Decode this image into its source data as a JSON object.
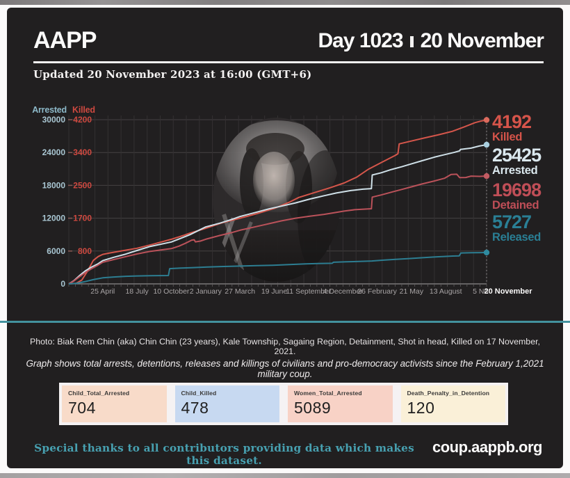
{
  "header": {
    "logo": "AAPP",
    "day_label": "Day 1023",
    "date_label": "20 November",
    "updated": "Updated 20 November 2023 at 16:00 (GMT+6)"
  },
  "colors": {
    "card_bg": "#211f20",
    "divider": "#43929e",
    "thanks": "#47a0b0",
    "grid_vertical": "#343132",
    "grid_horizontal": "#454243"
  },
  "chart_data": {
    "type": "line",
    "title": "",
    "x_axis": {
      "start_label_date": "February 1, 2021",
      "end_day": 1023,
      "tick_days": [
        83,
        167,
        251,
        335,
        419,
        503,
        587,
        671,
        755,
        839,
        923,
        1008,
        1023
      ],
      "tick_labels": [
        "25 April",
        "18 July",
        "10 October",
        "2 January",
        "27 March",
        "19 June",
        "11 September",
        "4 December",
        "26 February",
        "21 May",
        "13 August",
        "5 No",
        "20 November"
      ]
    },
    "y_left": {
      "label": "Arrested",
      "color": "#8db9c9",
      "ticks": [
        0,
        6000,
        12000,
        18000,
        24000,
        30000
      ],
      "max": 30000
    },
    "y_killed": {
      "label": "Killed",
      "color": "#ce4940",
      "ticks": [
        800,
        1700,
        2500,
        3400,
        4200
      ],
      "max": 4200
    },
    "series": [
      {
        "name": "Killed",
        "axis": "killed",
        "color": "#d5564b",
        "dot": "#dd6a5d",
        "final_value": 4192,
        "points": [
          [
            0,
            0
          ],
          [
            18,
            15
          ],
          [
            32,
            100
          ],
          [
            46,
            330
          ],
          [
            60,
            600
          ],
          [
            72,
            700
          ],
          [
            83,
            755
          ],
          [
            100,
            790
          ],
          [
            130,
            846
          ],
          [
            167,
            912
          ],
          [
            205,
            1010
          ],
          [
            251,
            1140
          ],
          [
            283,
            1245
          ],
          [
            297,
            1300
          ],
          [
            335,
            1420
          ],
          [
            375,
            1560
          ],
          [
            419,
            1680
          ],
          [
            455,
            1780
          ],
          [
            503,
            1930
          ],
          [
            540,
            2090
          ],
          [
            563,
            2210
          ],
          [
            600,
            2330
          ],
          [
            640,
            2460
          ],
          [
            674,
            2580
          ],
          [
            705,
            2730
          ],
          [
            734,
            2935
          ],
          [
            768,
            3120
          ],
          [
            800,
            3290
          ],
          [
            806,
            3330
          ],
          [
            809,
            3580
          ],
          [
            835,
            3645
          ],
          [
            870,
            3730
          ],
          [
            904,
            3810
          ],
          [
            940,
            3905
          ],
          [
            968,
            4015
          ],
          [
            995,
            4125
          ],
          [
            1008,
            4160
          ],
          [
            1023,
            4192
          ]
        ]
      },
      {
        "name": "Arrested",
        "axis": "arrested",
        "color": "#cfe0e8",
        "dot": "#a9cfdf",
        "final_value": 25425,
        "points": [
          [
            0,
            0
          ],
          [
            12,
            560
          ],
          [
            26,
            1500
          ],
          [
            40,
            2350
          ],
          [
            55,
            3050
          ],
          [
            70,
            3600
          ],
          [
            83,
            4250
          ],
          [
            110,
            4850
          ],
          [
            140,
            5450
          ],
          [
            167,
            6100
          ],
          [
            200,
            6850
          ],
          [
            251,
            7650
          ],
          [
            275,
            8350
          ],
          [
            297,
            9000
          ],
          [
            335,
            10400
          ],
          [
            370,
            11100
          ],
          [
            400,
            11800
          ],
          [
            419,
            12300
          ],
          [
            455,
            13000
          ],
          [
            490,
            13700
          ],
          [
            520,
            14200
          ],
          [
            555,
            14800
          ],
          [
            590,
            15500
          ],
          [
            625,
            16100
          ],
          [
            655,
            16600
          ],
          [
            690,
            17050
          ],
          [
            720,
            17300
          ],
          [
            741,
            17400
          ],
          [
            743,
            19900
          ],
          [
            765,
            20300
          ],
          [
            790,
            20900
          ],
          [
            815,
            21400
          ],
          [
            840,
            21950
          ],
          [
            865,
            22500
          ],
          [
            895,
            23150
          ],
          [
            920,
            23600
          ],
          [
            945,
            24050
          ],
          [
            957,
            24300
          ],
          [
            959,
            24560
          ],
          [
            985,
            24800
          ],
          [
            1005,
            25180
          ],
          [
            1023,
            25425
          ]
        ]
      },
      {
        "name": "Detained",
        "axis": "arrested",
        "color": "#bb525a",
        "dot": "#c25b62",
        "final_value": 19698,
        "points": [
          [
            0,
            0
          ],
          [
            12,
            500
          ],
          [
            26,
            1300
          ],
          [
            40,
            2050
          ],
          [
            55,
            2750
          ],
          [
            70,
            3350
          ],
          [
            83,
            3950
          ],
          [
            110,
            4450
          ],
          [
            140,
            4980
          ],
          [
            167,
            5470
          ],
          [
            200,
            5950
          ],
          [
            251,
            6440
          ],
          [
            270,
            6900
          ],
          [
            285,
            7400
          ],
          [
            301,
            8000
          ],
          [
            307,
            8060
          ],
          [
            310,
            7680
          ],
          [
            322,
            7820
          ],
          [
            335,
            8150
          ],
          [
            370,
            8850
          ],
          [
            400,
            9400
          ],
          [
            419,
            9800
          ],
          [
            455,
            10400
          ],
          [
            490,
            11000
          ],
          [
            520,
            11500
          ],
          [
            555,
            12000
          ],
          [
            590,
            12350
          ],
          [
            625,
            12700
          ],
          [
            655,
            13050
          ],
          [
            674,
            13300
          ],
          [
            700,
            13550
          ],
          [
            741,
            13730
          ],
          [
            743,
            15850
          ],
          [
            765,
            16250
          ],
          [
            790,
            16750
          ],
          [
            815,
            17250
          ],
          [
            840,
            17750
          ],
          [
            865,
            18250
          ],
          [
            895,
            18800
          ],
          [
            920,
            19300
          ],
          [
            936,
            19980
          ],
          [
            950,
            20030
          ],
          [
            957,
            19420
          ],
          [
            972,
            19440
          ],
          [
            985,
            19690
          ],
          [
            1006,
            19640
          ],
          [
            1023,
            19698
          ]
        ]
      },
      {
        "name": "Released",
        "axis": "arrested",
        "color": "#2d7e92",
        "dot": "#2f8ba0",
        "final_value": 5727,
        "points": [
          [
            0,
            0
          ],
          [
            20,
            120
          ],
          [
            40,
            420
          ],
          [
            60,
            780
          ],
          [
            83,
            1100
          ],
          [
            110,
            1260
          ],
          [
            140,
            1380
          ],
          [
            167,
            1445
          ],
          [
            200,
            1500
          ],
          [
            244,
            1520
          ],
          [
            247,
            2780
          ],
          [
            270,
            2870
          ],
          [
            300,
            2950
          ],
          [
            340,
            3080
          ],
          [
            380,
            3180
          ],
          [
            420,
            3250
          ],
          [
            460,
            3330
          ],
          [
            500,
            3410
          ],
          [
            540,
            3520
          ],
          [
            580,
            3650
          ],
          [
            610,
            3720
          ],
          [
            645,
            3760
          ],
          [
            648,
            3950
          ],
          [
            680,
            4030
          ],
          [
            710,
            4100
          ],
          [
            742,
            4180
          ],
          [
            770,
            4330
          ],
          [
            800,
            4480
          ],
          [
            830,
            4620
          ],
          [
            860,
            4760
          ],
          [
            890,
            4900
          ],
          [
            915,
            5000
          ],
          [
            940,
            5080
          ],
          [
            956,
            5120
          ],
          [
            960,
            5650
          ],
          [
            985,
            5690
          ],
          [
            1008,
            5710
          ],
          [
            1023,
            5727
          ]
        ]
      }
    ],
    "end_labels": [
      {
        "value": "4192",
        "name": "Killed",
        "color": "#d6544a"
      },
      {
        "value": "25425",
        "name": "Arrested",
        "color": "#dbe8ee"
      },
      {
        "value": "19698",
        "name": "Detained",
        "color": "#bf4e57"
      },
      {
        "value": "5727",
        "name": "Released",
        "color": "#2a7f95"
      }
    ],
    "legend_position": "right",
    "grid": true
  },
  "notes": {
    "photo_caption": "Photo: Biak Rem Chin (aka) Chin Chin (23 years), Kale Township, Sagaing Region, Detainment, Shot in head, Killed on 17 November, 2021.",
    "graph_note": "Graph shows total arrests, detentions, releases and killings of civilians and pro-democracy activists since the February 1,2021 military coup."
  },
  "stats": [
    {
      "label": "Child_Total_Arrested",
      "value": "704",
      "bg": "#f8dbc9"
    },
    {
      "label": "Child_Killed",
      "value": "478",
      "bg": "#c7d9f1"
    },
    {
      "label": "Women_Total_Arrested",
      "value": "5089",
      "bg": "#f8d2c6"
    },
    {
      "label": "Death_Penalty_in_Detention",
      "value": "120",
      "bg": "#faf0d8"
    }
  ],
  "footer": {
    "thanks": "Special thanks to all contributors providing data which makes this dataset.",
    "site": "coup.aappb.org"
  }
}
